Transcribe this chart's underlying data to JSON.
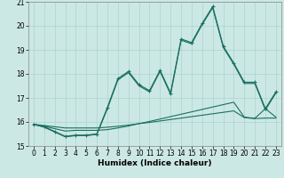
{
  "xlabel": "Humidex (Indice chaleur)",
  "bg_color": "#cce8e4",
  "grid_color": "#aad4cc",
  "line_color": "#1a7060",
  "xlim": [
    -0.5,
    23.5
  ],
  "ylim": [
    15,
    21
  ],
  "yticks": [
    15,
    16,
    17,
    18,
    19,
    20,
    21
  ],
  "xticks": [
    0,
    1,
    2,
    3,
    4,
    5,
    6,
    7,
    8,
    9,
    10,
    11,
    12,
    13,
    14,
    15,
    16,
    17,
    18,
    19,
    20,
    21,
    22,
    23
  ],
  "line_flat1": {
    "x": [
      0,
      1,
      2,
      3,
      4,
      5,
      6,
      7,
      8,
      9,
      10,
      11,
      12,
      13,
      14,
      15,
      16,
      17,
      18,
      19,
      20,
      21,
      22,
      23
    ],
    "y": [
      15.9,
      15.85,
      15.8,
      15.75,
      15.75,
      15.75,
      15.75,
      15.78,
      15.82,
      15.87,
      15.93,
      15.98,
      16.04,
      16.1,
      16.16,
      16.22,
      16.28,
      16.34,
      16.4,
      16.46,
      16.18,
      16.14,
      16.16,
      16.16
    ]
  },
  "line_flat2": {
    "x": [
      0,
      1,
      2,
      3,
      4,
      5,
      6,
      7,
      8,
      9,
      10,
      11,
      12,
      13,
      14,
      15,
      16,
      17,
      18,
      19,
      20,
      21,
      22,
      23
    ],
    "y": [
      15.9,
      15.82,
      15.72,
      15.62,
      15.65,
      15.65,
      15.65,
      15.68,
      15.75,
      15.83,
      15.93,
      16.02,
      16.12,
      16.22,
      16.32,
      16.42,
      16.52,
      16.62,
      16.72,
      16.82,
      16.2,
      16.15,
      16.55,
      16.2
    ]
  },
  "line_peak1": {
    "x": [
      0,
      1,
      2,
      3,
      4,
      5,
      6,
      7,
      8,
      9,
      10,
      11,
      12,
      13,
      14,
      15,
      16,
      17,
      18,
      19,
      20,
      21,
      22,
      23
    ],
    "y": [
      15.9,
      15.8,
      15.6,
      15.4,
      15.45,
      15.45,
      15.5,
      16.6,
      17.8,
      18.1,
      17.55,
      17.3,
      18.15,
      17.2,
      19.45,
      19.3,
      20.1,
      20.8,
      19.15,
      18.45,
      17.65,
      17.65,
      16.55,
      17.25
    ]
  },
  "line_peak2": {
    "x": [
      0,
      1,
      2,
      3,
      4,
      5,
      6,
      7,
      8,
      9,
      10,
      11,
      12,
      13,
      14,
      15,
      16,
      17,
      18,
      19,
      20,
      21,
      22,
      23
    ],
    "y": [
      15.9,
      15.78,
      15.58,
      15.38,
      15.43,
      15.43,
      15.48,
      16.55,
      17.75,
      18.05,
      17.5,
      17.25,
      18.1,
      17.15,
      19.4,
      19.25,
      20.05,
      20.75,
      19.1,
      18.4,
      17.6,
      17.6,
      16.5,
      17.2
    ]
  }
}
